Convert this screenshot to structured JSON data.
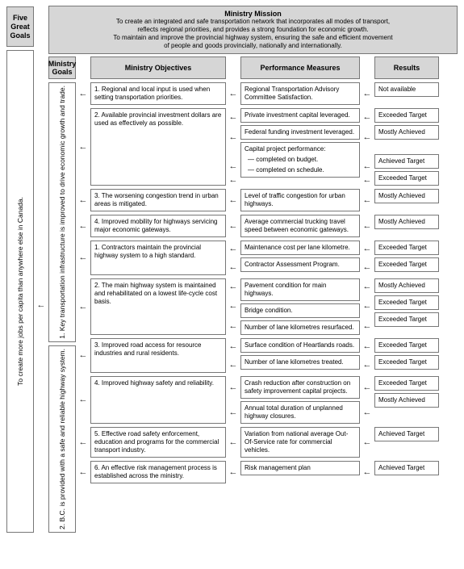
{
  "fiveGreatGoals": {
    "header": "Five Great Goals",
    "body": "To create more jobs per capita than anywhere else in Canada."
  },
  "mission": {
    "title": "Ministry Mission",
    "line1": "To create an integrated and safe transportation network that incorporates all modes of transport,",
    "line2": "reflects regional priorities, and provides a strong foundation for economic growth.",
    "line3": "To maintain and improve the provincial highway system, ensuring the safe and efficient movement",
    "line4": "of people and goods provincially, nationally and internationally."
  },
  "headers": {
    "goals": "Ministry Goals",
    "objectives": "Ministry Objectives",
    "performance": "Performance Measures",
    "results": "Results"
  },
  "arrowGlyph": "←",
  "goal1": {
    "label": "1. Key transportation infrastructure is improved to drive economic growth and trade.",
    "items": [
      {
        "obj": "1. Regional and local input is used when setting transportation priorities.",
        "pms": [
          "Regional Transportation Advisory Committee Satisfaction."
        ],
        "res": [
          "Not available"
        ]
      },
      {
        "obj": "2. Available provincial investment dollars are used as effectively as possible.",
        "pms": [
          "Private investment capital leveraged.",
          "Federal funding investment leveraged.",
          "Capital project performance:",
          "— completed on budget.",
          "— completed on schedule."
        ],
        "res": [
          "Exceeded Target",
          "Mostly Achieved",
          "",
          "Achieved Target",
          "Exceeded Target"
        ]
      },
      {
        "obj": "3. The worsening congestion trend in urban areas is mitigated.",
        "pms": [
          "Level of traffic congestion for urban highways."
        ],
        "res": [
          "Mostly Achieved"
        ]
      },
      {
        "obj": "4. Improved mobility for highways servicing major economic gateways.",
        "pms": [
          "Average commercial trucking travel speed between economic gateways."
        ],
        "res": [
          "Mostly Achieved"
        ]
      }
    ]
  },
  "goal2": {
    "label": "2. B.C. is provided with a safe and reliable highway system.",
    "items": [
      {
        "obj": "1. Contractors maintain the provincial highway system to a high standard.",
        "pms": [
          "Maintenance cost per lane kilometre.",
          "Contractor Assessment Program."
        ],
        "res": [
          "Exceeded Target",
          "Exceeded Target"
        ]
      },
      {
        "obj": "2. The main highway system is maintained and rehabilitated on a lowest life-cycle cost basis.",
        "pms": [
          "Pavement condition for main highways.",
          "Bridge condition.",
          "Number of lane kilometres resurfaced."
        ],
        "res": [
          "Mostly Achieved",
          "Exceeded Target",
          "Exceeded Target"
        ]
      },
      {
        "obj": "3. Improved road access for resource industries and rural residents.",
        "pms": [
          "Surface condition of Heartlands roads.",
          "Number of lane kilometres treated."
        ],
        "res": [
          "Exceeded Target",
          "Exceeded Target"
        ]
      },
      {
        "obj": "4. Improved highway safety and reliability.",
        "pms": [
          "Crash reduction after construction on safety improvement capital projects.",
          "Annual total duration of unplanned highway closures."
        ],
        "res": [
          "Exceeded Target",
          "Mostly Achieved"
        ]
      },
      {
        "obj": "5. Effective road safety enforcement, education and programs for the commercial transport industry.",
        "pms": [
          "Variation from national average Out-Of-Service rate for commercial vehicles."
        ],
        "res": [
          "Achieved Target"
        ]
      },
      {
        "obj": "6. An effective risk management process is established across the ministry.",
        "pms": [
          "Risk management plan"
        ],
        "res": [
          "Achieved Target"
        ]
      }
    ]
  }
}
